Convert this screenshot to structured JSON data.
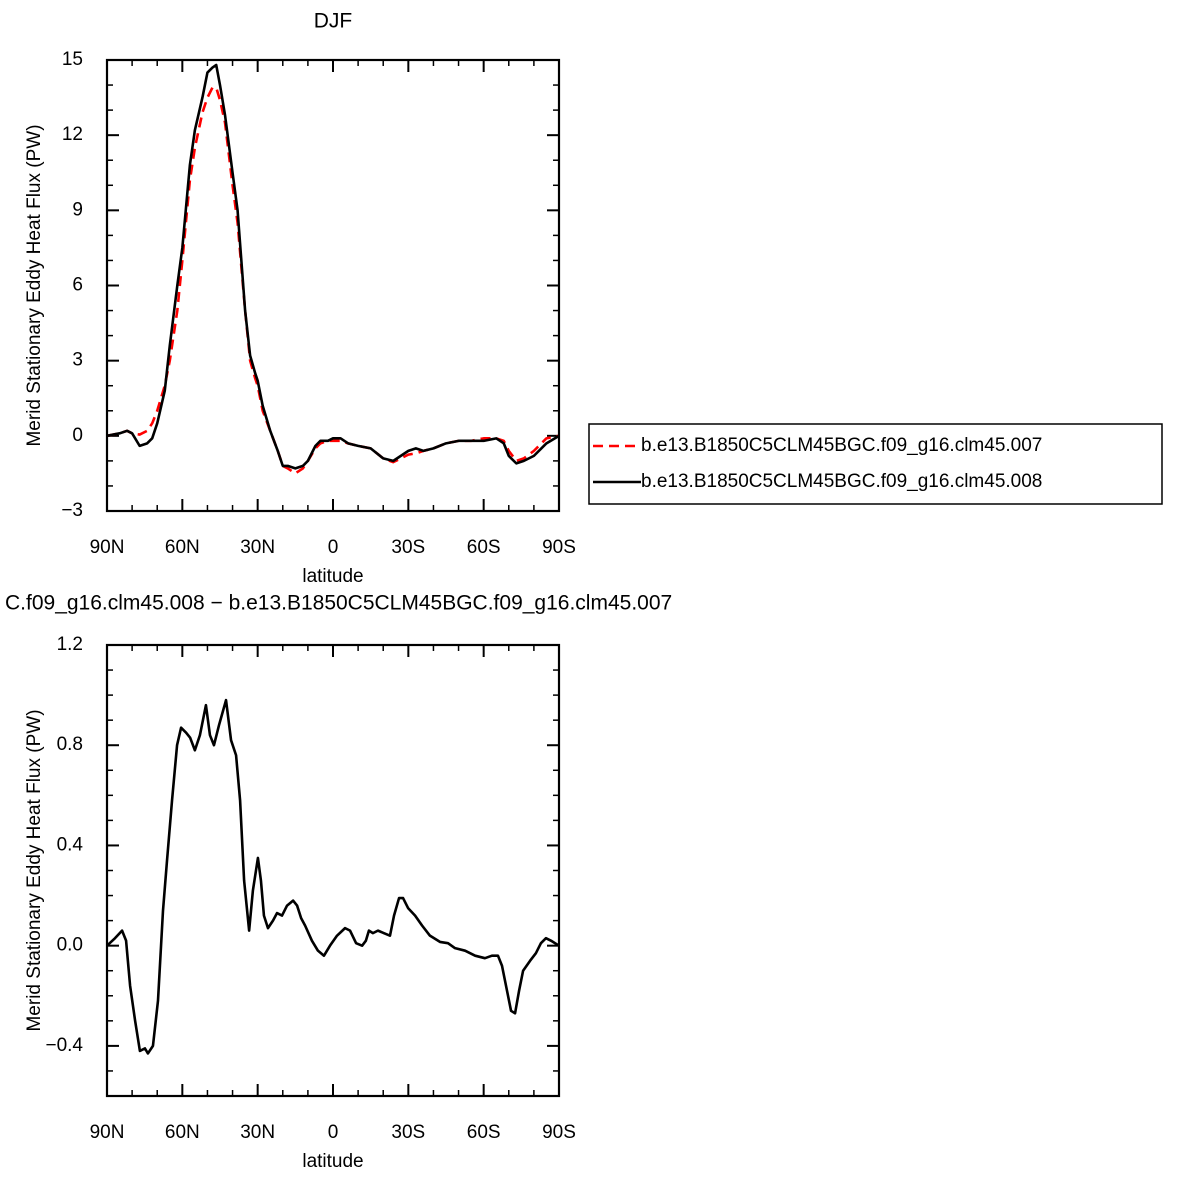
{
  "chart_data": [
    {
      "type": "line",
      "title": "DJF",
      "xlabel": "latitude",
      "ylabel": "Merid Stationary Eddy Heat Flux (PW)",
      "x": [
        90,
        85,
        82,
        80,
        77,
        74,
        72,
        70,
        67,
        65,
        62,
        60,
        57,
        55,
        52,
        50,
        48,
        46.5,
        45,
        43,
        40,
        38,
        35,
        33,
        31,
        30,
        28,
        25,
        22,
        20,
        18,
        15,
        12,
        10,
        7,
        5,
        2,
        0,
        -3,
        -6,
        -10,
        -15,
        -20,
        -24,
        -27,
        -30,
        -33,
        -36,
        -40,
        -45,
        -50,
        -55,
        -60,
        -65,
        -68,
        -70,
        -73,
        -76,
        -80,
        -85,
        -90
      ],
      "series": [
        {
          "name": "b.e13.B1850C5CLM45BGC.f09_g16.clm45.007",
          "color": "#ff0000",
          "dashed": true,
          "values": [
            0,
            0.1,
            0.2,
            0.1,
            0.05,
            0.2,
            0.5,
            1.0,
            2.0,
            3.0,
            5.0,
            7.0,
            10.2,
            11.5,
            12.9,
            13.5,
            13.9,
            13.9,
            13.4,
            12.5,
            10.0,
            8.5,
            5.0,
            3.0,
            2.3,
            2.0,
            1.0,
            0.2,
            -0.6,
            -1.2,
            -1.3,
            -1.5,
            -1.3,
            -1.0,
            -0.5,
            -0.3,
            -0.2,
            -0.2,
            -0.2,
            -0.3,
            -0.4,
            -0.5,
            -0.9,
            -1.05,
            -0.9,
            -0.75,
            -0.7,
            -0.6,
            -0.5,
            -0.3,
            -0.2,
            -0.2,
            -0.1,
            -0.1,
            -0.2,
            -0.6,
            -1.0,
            -0.9,
            -0.6,
            -0.1,
            0
          ]
        },
        {
          "name": "b.e13.B1850C5CLM45BGC.f09_g16.clm45.008",
          "color": "#000000",
          "dashed": false,
          "values": [
            0,
            0.1,
            0.2,
            0.1,
            -0.4,
            -0.3,
            -0.1,
            0.5,
            1.8,
            3.6,
            6.0,
            7.5,
            10.8,
            12.2,
            13.5,
            14.5,
            14.7,
            14.8,
            14.0,
            12.8,
            10.5,
            9.0,
            5.0,
            3.2,
            2.5,
            2.2,
            1.2,
            0.2,
            -0.6,
            -1.2,
            -1.2,
            -1.3,
            -1.2,
            -1.0,
            -0.4,
            -0.2,
            -0.2,
            -0.1,
            -0.1,
            -0.3,
            -0.4,
            -0.5,
            -0.9,
            -1.0,
            -0.8,
            -0.6,
            -0.5,
            -0.6,
            -0.5,
            -0.3,
            -0.2,
            -0.2,
            -0.2,
            -0.1,
            -0.3,
            -0.8,
            -1.1,
            -1.0,
            -0.8,
            -0.3,
            0
          ]
        }
      ],
      "xlim": [
        90,
        -90
      ],
      "xticks": [
        {
          "value": 90,
          "label": "90N"
        },
        {
          "value": 60,
          "label": "60N"
        },
        {
          "value": 30,
          "label": "30N"
        },
        0,
        {
          "value": -30,
          "label": "30S"
        },
        {
          "value": -60,
          "label": "60S"
        },
        {
          "value": -90,
          "label": "90S"
        }
      ],
      "xminorticks": [
        80,
        70,
        50,
        40,
        20,
        10,
        -10,
        -20,
        -40,
        -50,
        -70,
        -80
      ],
      "ylim": [
        -3,
        15
      ],
      "yticks": [
        {
          "value": -3,
          "label": "−3"
        },
        0,
        3,
        6,
        9,
        12,
        15
      ],
      "yminorticks": [
        -2,
        -1,
        1,
        2,
        4,
        5,
        7,
        8,
        10,
        11,
        13,
        14
      ],
      "legend": "outside-right"
    },
    {
      "type": "line",
      "title": "C.f09_g16.clm45.008 − b.e13.B1850C5CLM45BGC.f09_g16.clm45.007",
      "xlabel": "latitude",
      "ylabel": "Merid Stationary Eddy Heat Flux (PW)",
      "x": [
        90,
        86.8,
        84,
        82.4,
        80.8,
        78.8,
        76.9,
        74.9,
        73.7,
        71.7,
        69.7,
        67.7,
        66.1,
        64.1,
        62.1,
        60.5,
        58.5,
        56.9,
        55,
        53,
        50.6,
        49,
        47.4,
        45.4,
        42.6,
        40.6,
        38.6,
        37,
        35.4,
        33.4,
        31.9,
        29.9,
        28.7,
        27.5,
        25.9,
        23.9,
        22.3,
        20.3,
        18.3,
        15.9,
        14.3,
        12.7,
        11.1,
        8.4,
        6,
        3.6,
        1.2,
        -1.6,
        -4.8,
        -6.8,
        -9.2,
        -11.6,
        -13.1,
        -14.3,
        -15.9,
        -17.9,
        -20.3,
        -22.7,
        -24.3,
        -26.3,
        -27.9,
        -29.9,
        -32.7,
        -35.5,
        -38.6,
        -42.6,
        -45.8,
        -48.6,
        -52.6,
        -56.6,
        -60.5,
        -63.3,
        -65.7,
        -67.3,
        -69.3,
        -70.9,
        -72.5,
        -74.1,
        -75.7,
        -78.5,
        -80.8,
        -82.8,
        -84.8,
        -86.8,
        -90
      ],
      "series": [
        {
          "color": "#000000",
          "dashed": false,
          "values": [
            0,
            0.03,
            0.06,
            0.02,
            -0.16,
            -0.3,
            -0.42,
            -0.41,
            -0.43,
            -0.4,
            -0.22,
            0.14,
            0.34,
            0.58,
            0.8,
            0.87,
            0.85,
            0.83,
            0.78,
            0.84,
            0.96,
            0.84,
            0.8,
            0.88,
            0.98,
            0.82,
            0.76,
            0.58,
            0.26,
            0.06,
            0.22,
            0.35,
            0.26,
            0.12,
            0.07,
            0.1,
            0.13,
            0.12,
            0.16,
            0.18,
            0.16,
            0.11,
            0.08,
            0.02,
            -0.02,
            -0.04,
            0,
            0.04,
            0.07,
            0.06,
            0.01,
            0,
            0.02,
            0.06,
            0.05,
            0.06,
            0.05,
            0.04,
            0.12,
            0.19,
            0.19,
            0.15,
            0.12,
            0.08,
            0.04,
            0.015,
            0.01,
            -0.01,
            -0.02,
            -0.04,
            -0.05,
            -0.04,
            -0.04,
            -0.08,
            -0.18,
            -0.26,
            -0.27,
            -0.18,
            -0.1,
            -0.06,
            -0.03,
            0.01,
            0.03,
            0.02,
            0
          ]
        }
      ],
      "xlim": [
        90,
        -90
      ],
      "xticks": [
        {
          "value": 90,
          "label": "90N"
        },
        {
          "value": 60,
          "label": "60N"
        },
        {
          "value": 30,
          "label": "30N"
        },
        0,
        {
          "value": -30,
          "label": "30S"
        },
        {
          "value": -60,
          "label": "60S"
        },
        {
          "value": -90,
          "label": "90S"
        }
      ],
      "xminorticks": [
        80,
        70,
        50,
        40,
        20,
        10,
        -10,
        -20,
        -40,
        -50,
        -70,
        -80
      ],
      "ylim": [
        -0.6,
        1.2
      ],
      "yticks": [
        {
          "value": -0.4,
          "label": "−0.4"
        },
        {
          "value": 0,
          "label": "0.0"
        },
        0.4,
        0.8,
        1.2
      ],
      "yminorticks": [
        -0.5,
        -0.3,
        -0.2,
        -0.1,
        0.1,
        0.2,
        0.3,
        0.5,
        0.6,
        0.7,
        0.9,
        1.0,
        1.1
      ]
    }
  ]
}
